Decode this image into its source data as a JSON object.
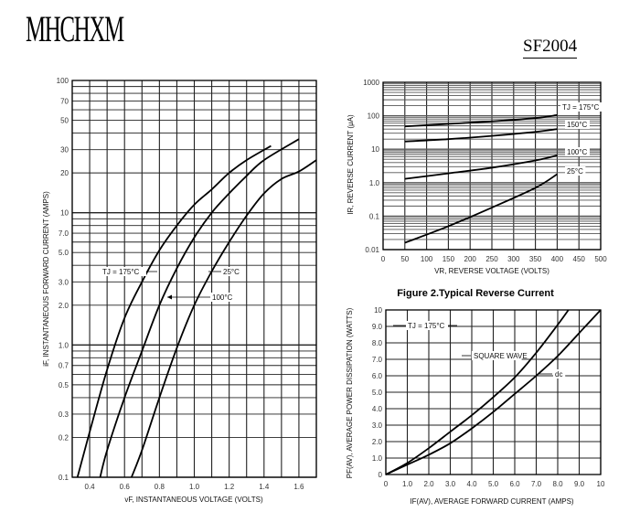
{
  "header": {
    "logo": "MHCHXM",
    "part_number": "SF2004"
  },
  "chart_data": [
    {
      "type": "line",
      "xscale": "linear",
      "yscale": "log",
      "xlim": [
        0.3,
        1.7
      ],
      "ylim": [
        0.1,
        100
      ],
      "grid": true,
      "xlabel": "vF, INSTANTANEOUS VOLTAGE (VOLTS)",
      "ylabel": "iF, INSTANTANEOUS FORWARD CURRENT (AMPS)",
      "xticks": [
        "0.4",
        "0.6",
        "0.8",
        "1.0",
        "1.2",
        "1.4",
        "1.6"
      ],
      "yticks": [
        "100",
        "70",
        "50",
        "30",
        "20",
        "10",
        "7.0",
        "5.0",
        "3.0",
        "2.0",
        "1.0",
        "0.7",
        "0.5",
        "0.3",
        "0.2",
        "0.1"
      ],
      "series": [
        {
          "name": "TJ = 175°C",
          "x": [
            0.33,
            0.4,
            0.5,
            0.6,
            0.7,
            0.8,
            0.9,
            1.0,
            1.1,
            1.2,
            1.3,
            1.44
          ],
          "y": [
            0.1,
            0.22,
            0.65,
            1.6,
            3,
            5.2,
            8,
            11.5,
            15,
            20,
            25,
            32
          ]
        },
        {
          "name": "100°C",
          "x": [
            0.46,
            0.5,
            0.6,
            0.7,
            0.8,
            0.9,
            1.0,
            1.1,
            1.2,
            1.3,
            1.4,
            1.6
          ],
          "y": [
            0.1,
            0.16,
            0.4,
            0.9,
            2,
            3.8,
            6.5,
            10,
            14,
            19,
            25,
            36
          ]
        },
        {
          "name": "25°C",
          "x": [
            0.64,
            0.7,
            0.8,
            0.9,
            1.0,
            1.1,
            1.2,
            1.3,
            1.4,
            1.5,
            1.6,
            1.7
          ],
          "y": [
            0.1,
            0.16,
            0.4,
            0.95,
            2,
            3.6,
            6,
            9.5,
            14,
            18,
            20.5,
            25
          ]
        }
      ]
    },
    {
      "type": "line",
      "title": "Figure 2.Typical  Reverse  Current",
      "xscale": "linear",
      "yscale": "log",
      "xlim": [
        0,
        500
      ],
      "ylim": [
        0.01,
        1000
      ],
      "grid": true,
      "xlabel": "VR, REVERSE VOLTAGE (VOLTS)",
      "ylabel": "IR, REVERSE CURRENT (μA)",
      "xticks": [
        "0",
        "50",
        "100",
        "150",
        "200",
        "250",
        "300",
        "350",
        "400",
        "450",
        "500"
      ],
      "yticks": [
        "1000",
        "100",
        "10",
        "1.0",
        "0.1",
        "0.01"
      ],
      "series": [
        {
          "name": "TJ = 175°C",
          "x": [
            50,
            150,
            250,
            350,
            400
          ],
          "y": [
            48,
            57,
            68,
            85,
            105
          ]
        },
        {
          "name": "150°C",
          "x": [
            50,
            150,
            250,
            350,
            400
          ],
          "y": [
            17,
            20,
            25,
            33,
            40
          ]
        },
        {
          "name": "100°C",
          "x": [
            50,
            150,
            250,
            350,
            400
          ],
          "y": [
            1.3,
            1.9,
            2.8,
            4.6,
            6.5
          ]
        },
        {
          "name": "25°C",
          "x": [
            50,
            150,
            250,
            350,
            400
          ],
          "y": [
            0.016,
            0.05,
            0.18,
            0.7,
            1.8
          ]
        }
      ]
    },
    {
      "type": "line",
      "xscale": "linear",
      "yscale": "linear",
      "xlim": [
        0,
        10
      ],
      "ylim": [
        0,
        10
      ],
      "grid": true,
      "xlabel": "IF(AV), AVERAGE FORWARD CURRENT (AMPS)",
      "ylabel": "PF(AV), AVERAGE POWER DISSIPATION (WATTS)",
      "xticks": [
        "0",
        "1.0",
        "2.0",
        "3.0",
        "4.0",
        "5.0",
        "6.0",
        "7.0",
        "8.0",
        "9.0",
        "10"
      ],
      "yticks": [
        "10",
        "9.0",
        "8.0",
        "7.0",
        "6.0",
        "5.0",
        "4.0",
        "3.0",
        "2.0",
        "1.0",
        "0"
      ],
      "annotation": "TJ = 175°C",
      "series": [
        {
          "name": "SQUARE WAVE",
          "x": [
            0,
            1,
            2,
            3,
            4,
            5,
            6,
            7,
            8,
            8.5
          ],
          "y": [
            0,
            0.7,
            1.6,
            2.6,
            3.6,
            4.7,
            5.9,
            7.4,
            9.1,
            10
          ]
        },
        {
          "name": "dc",
          "x": [
            0,
            1,
            2,
            3,
            4,
            5,
            6,
            7,
            8,
            9,
            10
          ],
          "y": [
            0,
            0.6,
            1.2,
            1.9,
            2.8,
            3.8,
            4.9,
            6,
            7.2,
            8.6,
            10
          ]
        }
      ]
    }
  ]
}
